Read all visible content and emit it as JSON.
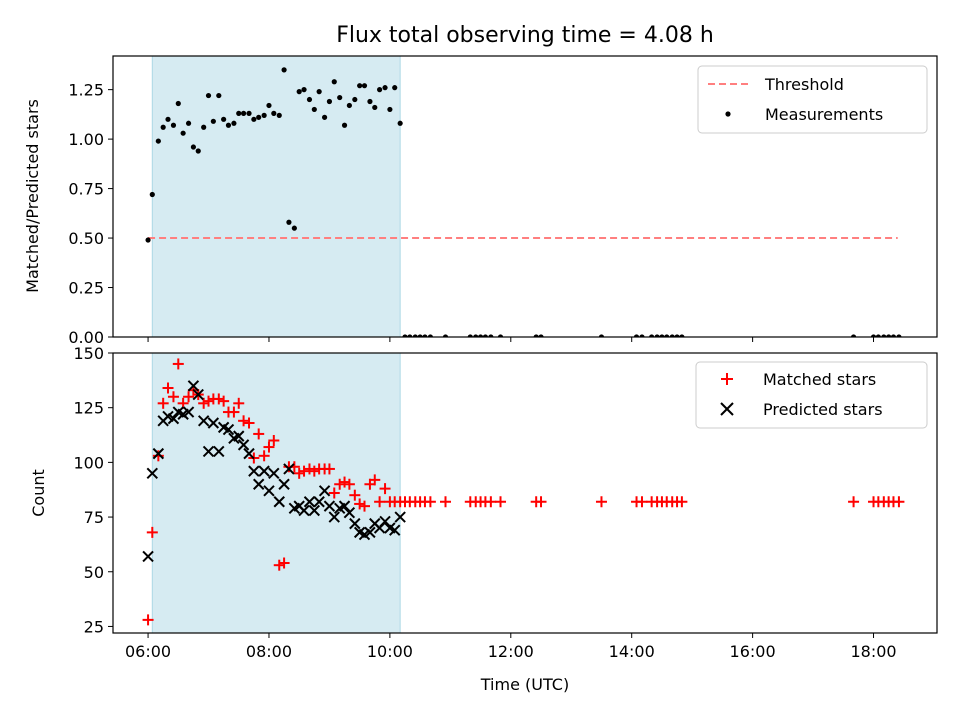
{
  "chart_data": [
    {
      "type": "scatter",
      "title": "Flux total observing time = 4.08 h",
      "ylabel": "Matched/Predicted stars",
      "ylim": [
        0,
        1.42
      ],
      "yticks": [
        "0.00",
        "0.25",
        "0.50",
        "0.75",
        "1.00",
        "1.25"
      ],
      "ytick_values": [
        0,
        0.25,
        0.5,
        0.75,
        1.0,
        1.25
      ],
      "xlim": [
        5.42,
        19.05
      ],
      "xticks": [
        6,
        8,
        10,
        12,
        14,
        16,
        18
      ],
      "shaded_region": {
        "x": [
          6.07,
          10.17
        ],
        "color": "#add8e6"
      },
      "threshold": {
        "name": "Threshold",
        "value": 0.5,
        "x": [
          6.0,
          18.4
        ],
        "color": "#ff7f7f"
      },
      "legend": [
        "Threshold",
        "Measurements"
      ],
      "legend_position": "top-right",
      "series": [
        {
          "name": "Measurements",
          "color": "#000000",
          "x": [
            6.0,
            6.07,
            6.17,
            6.25,
            6.33,
            6.42,
            6.5,
            6.58,
            6.67,
            6.75,
            6.83,
            6.92,
            7.0,
            7.08,
            7.17,
            7.25,
            7.33,
            7.42,
            7.5,
            7.58,
            7.67,
            7.75,
            7.83,
            7.92,
            8.0,
            8.08,
            8.17,
            8.25,
            8.33,
            8.42,
            8.5,
            8.58,
            8.67,
            8.75,
            8.83,
            8.92,
            9.0,
            9.08,
            9.17,
            9.25,
            9.33,
            9.42,
            9.5,
            9.58,
            9.67,
            9.75,
            9.83,
            9.92,
            10.0,
            10.08,
            10.17,
            10.25,
            10.33,
            10.42,
            10.5,
            10.58,
            10.67,
            10.92,
            11.33,
            11.42,
            11.5,
            11.58,
            11.67,
            11.83,
            12.42,
            12.5,
            13.5,
            14.08,
            14.17,
            14.33,
            14.42,
            14.5,
            14.58,
            14.67,
            14.75,
            14.83,
            17.67,
            18.0,
            18.08,
            18.17,
            18.25,
            18.33,
            18.42
          ],
          "y": [
            0.49,
            0.72,
            0.99,
            1.06,
            1.1,
            1.07,
            1.18,
            1.03,
            1.08,
            0.96,
            0.94,
            1.06,
            1.22,
            1.09,
            1.22,
            1.1,
            1.07,
            1.08,
            1.13,
            1.13,
            1.13,
            1.1,
            1.11,
            1.12,
            1.17,
            1.13,
            1.12,
            1.35,
            0.58,
            0.55,
            1.24,
            1.25,
            1.2,
            1.15,
            1.24,
            1.11,
            1.19,
            1.29,
            1.21,
            1.07,
            1.17,
            1.2,
            1.27,
            1.27,
            1.19,
            1.16,
            1.25,
            1.26,
            1.15,
            1.26,
            1.08,
            0,
            0,
            0,
            0,
            0,
            0,
            0,
            0,
            0,
            0,
            0,
            0,
            0,
            0,
            0,
            0,
            0,
            0,
            0,
            0,
            0,
            0,
            0,
            0,
            0,
            0,
            0,
            0,
            0,
            0,
            0,
            0
          ]
        }
      ]
    },
    {
      "type": "scatter",
      "xlabel": "Time (UTC)",
      "ylabel": "Count",
      "ylim": [
        22,
        150
      ],
      "yticks": [
        "25",
        "50",
        "75",
        "100",
        "125",
        "150"
      ],
      "ytick_values": [
        25,
        50,
        75,
        100,
        125,
        150
      ],
      "xlim": [
        5.42,
        19.05
      ],
      "xticks": [
        "06:00",
        "08:00",
        "10:00",
        "12:00",
        "14:00",
        "16:00",
        "18:00"
      ],
      "xtick_values": [
        6,
        8,
        10,
        12,
        14,
        16,
        18
      ],
      "shaded_region": {
        "x": [
          6.07,
          10.17
        ],
        "color": "#add8e6"
      },
      "legend": [
        "Matched stars",
        "Predicted stars"
      ],
      "legend_position": "top-right",
      "series": [
        {
          "name": "Matched stars",
          "marker": "+",
          "color": "#ff0000",
          "x": [
            6.0,
            6.07,
            6.17,
            6.25,
            6.33,
            6.42,
            6.5,
            6.58,
            6.67,
            6.75,
            6.83,
            6.92,
            7.0,
            7.08,
            7.17,
            7.25,
            7.33,
            7.42,
            7.5,
            7.58,
            7.67,
            7.75,
            7.83,
            7.92,
            8.0,
            8.08,
            8.17,
            8.25,
            8.33,
            8.42,
            8.5,
            8.58,
            8.67,
            8.75,
            8.83,
            8.92,
            9.0,
            9.08,
            9.17,
            9.25,
            9.33,
            9.42,
            9.5,
            9.58,
            9.67,
            9.75,
            9.83,
            9.92,
            10.0,
            10.08,
            10.17,
            10.25,
            10.33,
            10.42,
            10.5,
            10.58,
            10.67,
            10.92,
            11.33,
            11.42,
            11.5,
            11.58,
            11.67,
            11.83,
            12.42,
            12.5,
            13.5,
            14.08,
            14.17,
            14.33,
            14.42,
            14.5,
            14.58,
            14.67,
            14.75,
            14.83,
            17.67,
            18.0,
            18.08,
            18.17,
            18.25,
            18.33,
            18.42
          ],
          "y": [
            28,
            68,
            103,
            127,
            134,
            130,
            145,
            127,
            130,
            133,
            131,
            127,
            128,
            129,
            129,
            128,
            123,
            123,
            127,
            119,
            118,
            102,
            113,
            103,
            107,
            110,
            53,
            54,
            98,
            98,
            95,
            96,
            97,
            96,
            97,
            97,
            97,
            86,
            90,
            91,
            90,
            85,
            81,
            80,
            90,
            92,
            82,
            88,
            82,
            82,
            82,
            82,
            82,
            82,
            82,
            82,
            82,
            82,
            82,
            82,
            82,
            82,
            82,
            82,
            82,
            82,
            82,
            82,
            82,
            82,
            82,
            82,
            82,
            82,
            82,
            82,
            82,
            82,
            82,
            82,
            82,
            82,
            82
          ]
        },
        {
          "name": "Predicted stars",
          "marker": "x",
          "color": "#000000",
          "x": [
            6.0,
            6.07,
            6.17,
            6.25,
            6.33,
            6.42,
            6.5,
            6.58,
            6.67,
            6.75,
            6.83,
            6.92,
            7.0,
            7.08,
            7.17,
            7.25,
            7.33,
            7.42,
            7.5,
            7.58,
            7.67,
            7.75,
            7.83,
            7.92,
            8.0,
            8.08,
            8.17,
            8.25,
            8.33,
            8.42,
            8.5,
            8.58,
            8.67,
            8.75,
            8.83,
            8.92,
            9.0,
            9.08,
            9.17,
            9.25,
            9.33,
            9.42,
            9.5,
            9.58,
            9.67,
            9.75,
            9.83,
            9.92,
            10.0,
            10.08,
            10.17
          ],
          "y": [
            57,
            95,
            104,
            119,
            121,
            120,
            123,
            122,
            123,
            135,
            131,
            119,
            105,
            118,
            105,
            116,
            115,
            111,
            112,
            108,
            104,
            96,
            90,
            96,
            87,
            95,
            82,
            90,
            97,
            79,
            80,
            78,
            82,
            78,
            82,
            87,
            80,
            75,
            79,
            80,
            77,
            72,
            68,
            67,
            68,
            72,
            70,
            73,
            70,
            69,
            75
          ]
        }
      ]
    }
  ]
}
